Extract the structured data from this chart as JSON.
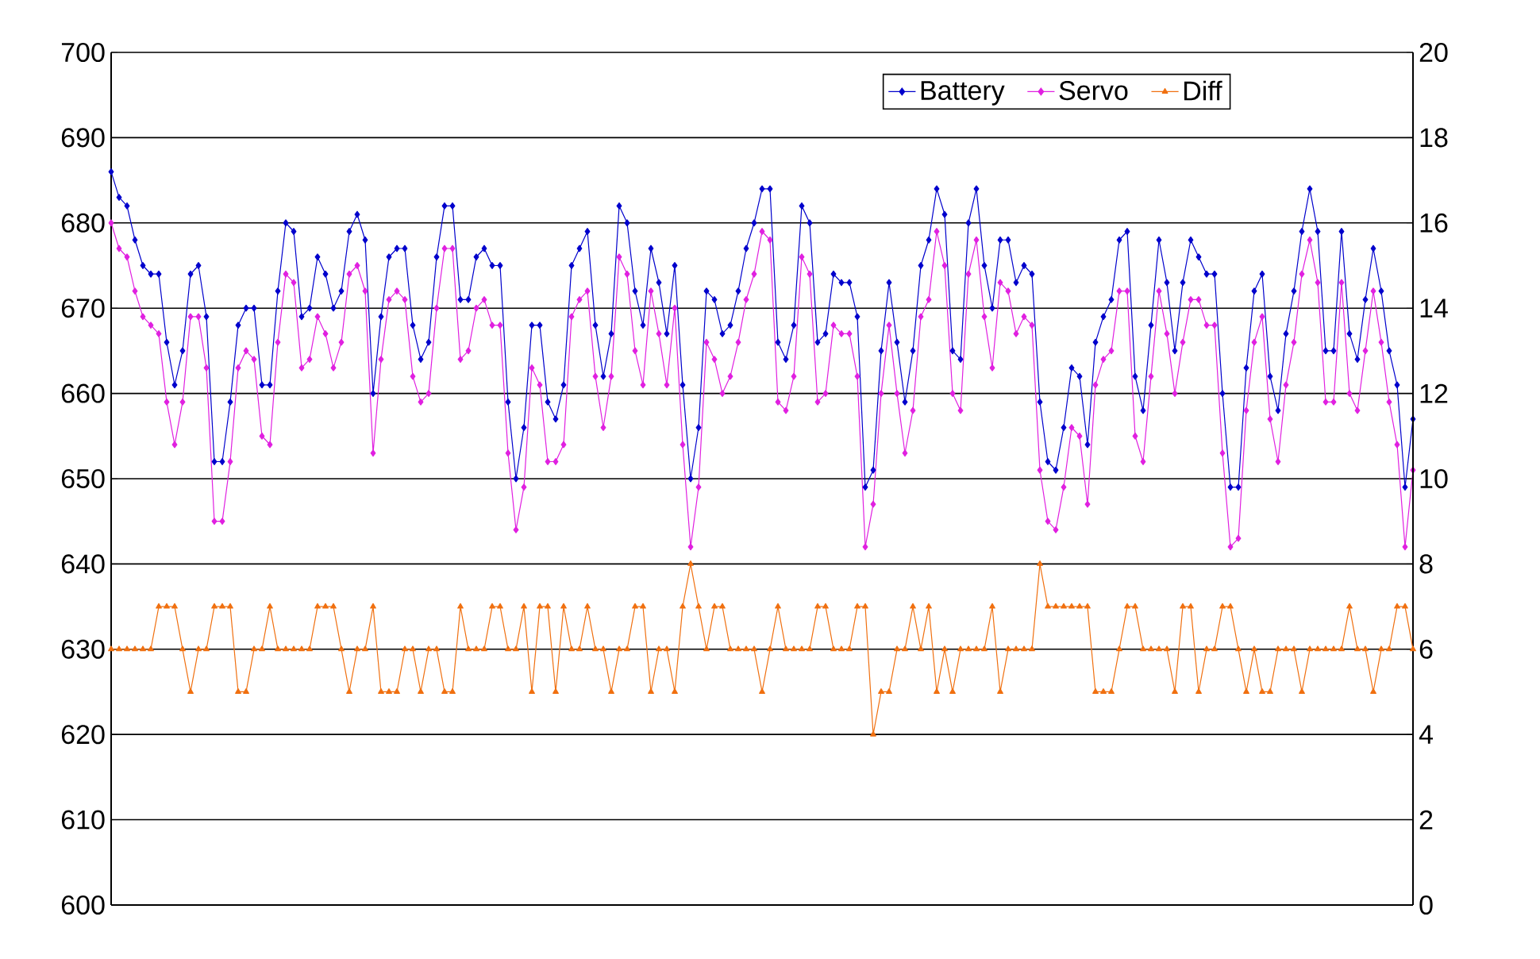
{
  "chart_data": {
    "type": "line",
    "categories": [
      null,
      null,
      null,
      null,
      null,
      null,
      null,
      null,
      null,
      null,
      null,
      null,
      null,
      null,
      null,
      null,
      null,
      null,
      null,
      null,
      null,
      null,
      null,
      null,
      null,
      null,
      null,
      null,
      null,
      null,
      null,
      null,
      null,
      null,
      null,
      null,
      null,
      null,
      null,
      null,
      null,
      null,
      null,
      null,
      null,
      null,
      null,
      null,
      null,
      null,
      null,
      null,
      null,
      null,
      null,
      null,
      null,
      null,
      null,
      null,
      null,
      null,
      null,
      null,
      null,
      null,
      null,
      null,
      null,
      null,
      null,
      null,
      null,
      null,
      null,
      null,
      null,
      null,
      null,
      null,
      null,
      null,
      null,
      null,
      null,
      null,
      null,
      null,
      null,
      null,
      null,
      null,
      null,
      null,
      null,
      null,
      null,
      null,
      null,
      null,
      null,
      null,
      null,
      null,
      null,
      null,
      null,
      null,
      null,
      null,
      null,
      null,
      null,
      null,
      null,
      null,
      null,
      null,
      null,
      null,
      null,
      null,
      null,
      null,
      null,
      null,
      null,
      null,
      null,
      null,
      null,
      null,
      null,
      null,
      null,
      null,
      null,
      null,
      null,
      null,
      null,
      null,
      null,
      null,
      null,
      null,
      null,
      null,
      null,
      null,
      null,
      null,
      null,
      null,
      null,
      null,
      null,
      null,
      null,
      null,
      null,
      null,
      null,
      null,
      null
    ],
    "series": [
      {
        "name": "Battery",
        "color": "#0000cc",
        "marker": "diamond",
        "values": [
          686,
          683,
          682,
          678,
          675,
          674,
          674,
          666,
          661,
          665,
          674,
          675,
          669,
          652,
          652,
          659,
          668,
          670,
          670,
          661,
          661,
          672,
          680,
          679,
          669,
          670,
          676,
          674,
          670,
          672,
          679,
          681,
          678,
          660,
          669,
          676,
          677,
          677,
          668,
          664,
          666,
          676,
          682,
          682,
          671,
          671,
          676,
          677,
          675,
          675,
          659,
          650,
          656,
          668,
          668,
          659,
          657,
          661,
          675,
          677,
          679,
          668,
          662,
          667,
          682,
          680,
          672,
          668,
          677,
          673,
          667,
          675,
          661,
          650,
          656,
          672,
          671,
          667,
          668,
          672,
          677,
          680,
          684,
          684,
          666,
          664,
          668,
          682,
          680,
          666,
          667,
          674,
          673,
          673,
          669,
          649,
          651,
          665,
          673,
          666,
          659,
          665,
          675,
          678,
          684,
          681,
          665,
          664,
          680,
          684,
          675,
          670,
          678,
          678,
          673,
          675,
          674,
          659,
          652,
          651,
          656,
          663,
          662,
          654,
          666,
          669,
          671,
          678,
          679,
          662,
          658,
          668,
          678,
          673,
          665,
          673,
          678,
          676,
          674,
          674,
          660,
          649,
          649,
          663,
          672,
          674,
          662,
          658,
          667,
          672,
          679,
          684,
          679,
          665,
          665,
          679,
          667,
          664,
          671,
          677,
          672,
          665,
          661,
          649,
          657
        ]
      },
      {
        "name": "Servo",
        "color": "#e020e0",
        "marker": "diamond",
        "values": [
          680,
          677,
          676,
          672,
          669,
          668,
          667,
          659,
          654,
          659,
          669,
          669,
          663,
          645,
          645,
          652,
          663,
          665,
          664,
          655,
          654,
          666,
          674,
          673,
          663,
          664,
          669,
          667,
          663,
          666,
          674,
          675,
          672,
          653,
          664,
          671,
          672,
          671,
          662,
          659,
          660,
          670,
          677,
          677,
          664,
          665,
          670,
          671,
          668,
          668,
          653,
          644,
          649,
          663,
          661,
          652,
          652,
          654,
          669,
          671,
          672,
          662,
          656,
          662,
          676,
          674,
          665,
          661,
          672,
          667,
          661,
          670,
          654,
          642,
          649,
          666,
          664,
          660,
          662,
          666,
          671,
          674,
          679,
          678,
          659,
          658,
          662,
          676,
          674,
          659,
          660,
          668,
          667,
          667,
          662,
          642,
          647,
          660,
          668,
          660,
          653,
          658,
          669,
          671,
          679,
          675,
          660,
          658,
          674,
          678,
          669,
          663,
          673,
          672,
          667,
          669,
          668,
          651,
          645,
          644,
          649,
          656,
          655,
          647,
          661,
          664,
          665,
          672,
          672,
          655,
          652,
          662,
          672,
          667,
          660,
          666,
          671,
          671,
          668,
          668,
          653,
          642,
          643,
          658,
          666,
          669,
          657,
          652,
          661,
          666,
          674,
          678,
          673,
          659,
          659,
          673,
          660,
          658,
          665,
          672,
          666,
          659,
          654,
          642,
          651
        ]
      },
      {
        "name": "Diff",
        "color": "#f07010",
        "marker": "triangle",
        "axis": "y2",
        "values": [
          6,
          6,
          6,
          6,
          6,
          6,
          7,
          7,
          7,
          6,
          5,
          6,
          6,
          7,
          7,
          7,
          5,
          5,
          6,
          6,
          7,
          6,
          6,
          6,
          6,
          6,
          7,
          7,
          7,
          6,
          5,
          6,
          6,
          7,
          5,
          5,
          5,
          6,
          6,
          5,
          6,
          6,
          5,
          5,
          7,
          6,
          6,
          6,
          7,
          7,
          6,
          6,
          7,
          5,
          7,
          7,
          5,
          7,
          6,
          6,
          7,
          6,
          6,
          5,
          6,
          6,
          7,
          7,
          5,
          6,
          6,
          5,
          7,
          8,
          7,
          6,
          7,
          7,
          6,
          6,
          6,
          6,
          5,
          6,
          7,
          6,
          6,
          6,
          6,
          7,
          7,
          6,
          6,
          6,
          7,
          7,
          4,
          5,
          5,
          6,
          6,
          7,
          6,
          7,
          5,
          6,
          5,
          6,
          6,
          6,
          6,
          7,
          5,
          6,
          6,
          6,
          6,
          8,
          7,
          7,
          7,
          7,
          7,
          7,
          5,
          5,
          5,
          6,
          7,
          7,
          6,
          6,
          6,
          6,
          5,
          7,
          7,
          5,
          6,
          6,
          7,
          7,
          6,
          5,
          6,
          5,
          5,
          6,
          6,
          6,
          5,
          6,
          6,
          6,
          6,
          6,
          7,
          6,
          6,
          5,
          6,
          6,
          7,
          7,
          6
        ]
      }
    ],
    "ylim": [
      600,
      700
    ],
    "yticks": [
      600,
      610,
      620,
      630,
      640,
      650,
      660,
      670,
      680,
      690,
      700
    ],
    "y2lim": [
      0,
      20
    ],
    "y2ticks": [
      0,
      2,
      4,
      6,
      8,
      10,
      12,
      14,
      16,
      18,
      20
    ],
    "grid": "y",
    "legend": "top right",
    "line_style": "solid"
  }
}
